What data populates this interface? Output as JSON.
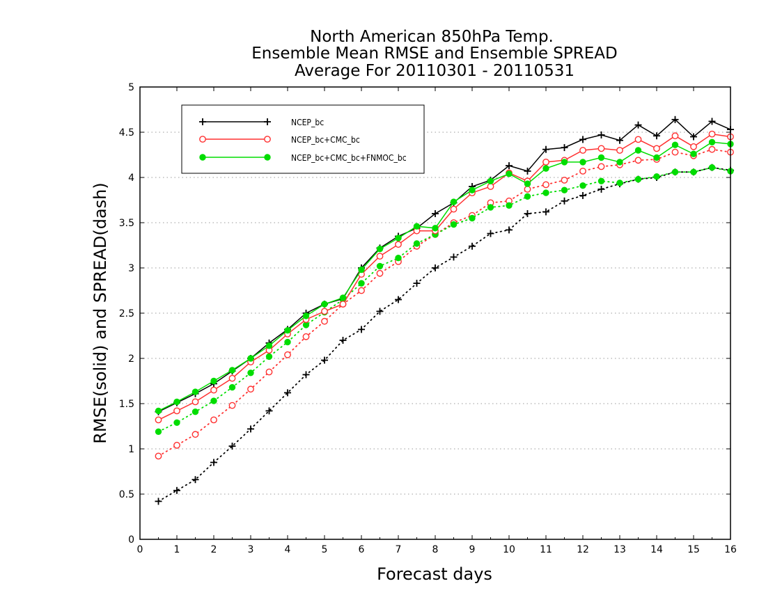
{
  "chart_data": {
    "type": "line",
    "title_lines": [
      "North American 850hPa Temp.",
      "Ensemble Mean RMSE and Ensemble SPREAD",
      "Average For 20110301 - 20110531"
    ],
    "xlabel": "Forecast days",
    "ylabel": "RMSE(solid) and SPREAD(dash)",
    "xlim": [
      0,
      16
    ],
    "ylim": [
      0,
      5
    ],
    "x_ticks": [
      "0",
      "1",
      "2",
      "3",
      "4",
      "5",
      "6",
      "7",
      "8",
      "9",
      "10",
      "11",
      "12",
      "13",
      "14",
      "15",
      "16"
    ],
    "y_ticks": [
      "0",
      "0.5",
      "1",
      "1.5",
      "2",
      "2.5",
      "3",
      "3.5",
      "4",
      "4.5",
      "5"
    ],
    "grid": "horizontal dotted",
    "legend_position": "top-left",
    "x": [
      0.5,
      1,
      1.5,
      2,
      2.5,
      3,
      3.5,
      4,
      4.5,
      5,
      5.5,
      6,
      6.5,
      7,
      7.5,
      8,
      8.5,
      9,
      9.5,
      10,
      10.5,
      11,
      11.5,
      12,
      12.5,
      13,
      13.5,
      14,
      14.5,
      15,
      15.5,
      16
    ],
    "series": [
      {
        "name": "NCEP_bc",
        "color": "#000000",
        "marker": "plus",
        "rmse": [
          1.41,
          1.51,
          1.61,
          1.72,
          1.86,
          2.0,
          2.17,
          2.32,
          2.5,
          2.6,
          2.66,
          3.0,
          3.22,
          3.35,
          3.44,
          3.6,
          3.72,
          3.9,
          3.97,
          4.13,
          4.07,
          4.31,
          4.33,
          4.42,
          4.47,
          4.41,
          4.58,
          4.46,
          4.64,
          4.45,
          4.62,
          4.53
        ],
        "spread": [
          0.42,
          0.54,
          0.66,
          0.85,
          1.03,
          1.22,
          1.42,
          1.62,
          1.82,
          1.98,
          2.2,
          2.32,
          2.52,
          2.65,
          2.83,
          3.0,
          3.12,
          3.24,
          3.38,
          3.42,
          3.6,
          3.62,
          3.74,
          3.8,
          3.87,
          3.93,
          3.98,
          4.0,
          4.06,
          4.06,
          4.11,
          4.08
        ]
      },
      {
        "name": "NCEP_bc+CMC_bc",
        "color": "#ff3030",
        "marker": "open-circle",
        "rmse": [
          1.32,
          1.42,
          1.52,
          1.65,
          1.78,
          1.96,
          2.09,
          2.27,
          2.43,
          2.52,
          2.6,
          2.93,
          3.13,
          3.26,
          3.41,
          3.41,
          3.65,
          3.83,
          3.9,
          4.05,
          3.96,
          4.17,
          4.19,
          4.3,
          4.32,
          4.3,
          4.42,
          4.32,
          4.46,
          4.34,
          4.48,
          4.45
        ],
        "spread": [
          0.92,
          1.04,
          1.16,
          1.32,
          1.48,
          1.66,
          1.85,
          2.04,
          2.24,
          2.41,
          2.6,
          2.75,
          2.94,
          3.07,
          3.24,
          3.37,
          3.5,
          3.58,
          3.72,
          3.74,
          3.87,
          3.92,
          3.97,
          4.07,
          4.12,
          4.14,
          4.19,
          4.2,
          4.28,
          4.24,
          4.31,
          4.28
        ]
      },
      {
        "name": "NCEP_bc+CMC_bc+FNMOC_bc",
        "color": "#00dd00",
        "marker": "filled-circle",
        "rmse": [
          1.42,
          1.52,
          1.63,
          1.75,
          1.87,
          2.0,
          2.14,
          2.31,
          2.47,
          2.6,
          2.67,
          2.98,
          3.21,
          3.33,
          3.46,
          3.44,
          3.73,
          3.86,
          3.96,
          4.04,
          3.93,
          4.1,
          4.17,
          4.17,
          4.22,
          4.17,
          4.3,
          4.22,
          4.36,
          4.26,
          4.39,
          4.37
        ],
        "spread": [
          1.19,
          1.29,
          1.41,
          1.53,
          1.68,
          1.84,
          2.02,
          2.18,
          2.37,
          2.51,
          2.65,
          2.83,
          3.02,
          3.11,
          3.27,
          3.37,
          3.48,
          3.55,
          3.67,
          3.69,
          3.79,
          3.83,
          3.86,
          3.91,
          3.96,
          3.94,
          3.98,
          4.01,
          4.06,
          4.06,
          4.11,
          4.07
        ]
      }
    ]
  }
}
